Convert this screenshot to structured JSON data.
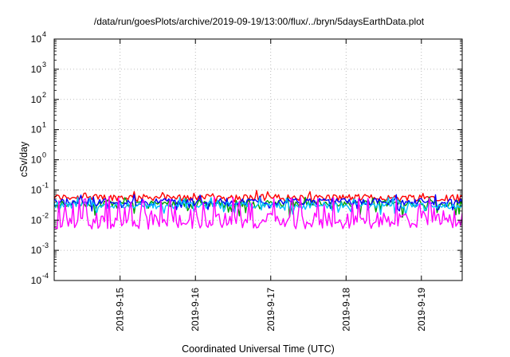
{
  "chart_data": {
    "type": "line",
    "title": "/data/run/goesPlots/archive/2019-09-19/13:00/flux/../bryn/5daysEarthData.plot",
    "xlabel": "Coordinated Universal Time (UTC)",
    "ylabel": "cSv/day",
    "y_scale": "log",
    "ylim": [
      0.0001,
      10000
    ],
    "y_ticks": [
      {
        "base": "10",
        "exp": "4",
        "value": 10000
      },
      {
        "base": "10",
        "exp": "3",
        "value": 1000
      },
      {
        "base": "10",
        "exp": "2",
        "value": 100
      },
      {
        "base": "10",
        "exp": "1",
        "value": 10
      },
      {
        "base": "10",
        "exp": "0",
        "value": 1
      },
      {
        "base": "10",
        "exp": "-1",
        "value": 0.1
      },
      {
        "base": "10",
        "exp": "-2",
        "value": 0.01
      },
      {
        "base": "10",
        "exp": "-3",
        "value": 0.001
      },
      {
        "base": "10",
        "exp": "-4",
        "value": 0.0001
      }
    ],
    "x_range": [
      "2019-09-14T03:00",
      "2019-09-19T13:00"
    ],
    "x_ticks": [
      "2019-9-15",
      "2019-9-16",
      "2019-9-17",
      "2019-9-18",
      "2019-9-19"
    ],
    "x_tick_values": [
      "2019-09-15T00:00",
      "2019-09-16T00:00",
      "2019-09-17T00:00",
      "2019-09-18T00:00",
      "2019-09-19T00:00"
    ],
    "grid": true,
    "legend": "none",
    "sample_interval_hours": 0.5,
    "series": [
      {
        "color": "#ff0000",
        "base": 0.055,
        "low": 0.04,
        "high": 0.1
      },
      {
        "color": "#00a000",
        "base": 0.035,
        "low": 0.012,
        "high": 0.06
      },
      {
        "color": "#0000ff",
        "base": 0.04,
        "low": 0.02,
        "high": 0.07
      },
      {
        "color": "#00c0ff",
        "base": 0.03,
        "low": 0.015,
        "high": 0.06
      },
      {
        "color": "#ff00ff",
        "base": 0.0075,
        "low": 0.005,
        "high": 0.06
      }
    ]
  }
}
